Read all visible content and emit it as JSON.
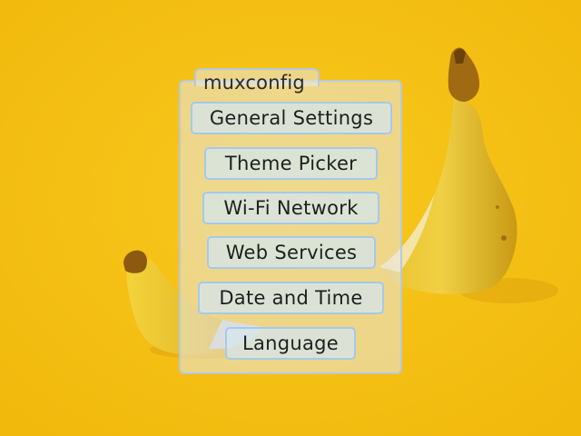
{
  "wallpaper": {
    "background_color": "#f6c215",
    "subject": "bananas"
  },
  "window": {
    "title": "muxconfig"
  },
  "menu": {
    "items": [
      {
        "label": "General Settings",
        "selected": true
      },
      {
        "label": "Theme Picker"
      },
      {
        "label": "Wi-Fi Network"
      },
      {
        "label": "Web Services"
      },
      {
        "label": "Date and Time"
      },
      {
        "label": "Language"
      }
    ]
  },
  "colors": {
    "panel_border": "#b4c8e1",
    "button_border": "#a0c8eb",
    "button_fill": "#d6e6eb",
    "text": "#1e1e1e"
  }
}
